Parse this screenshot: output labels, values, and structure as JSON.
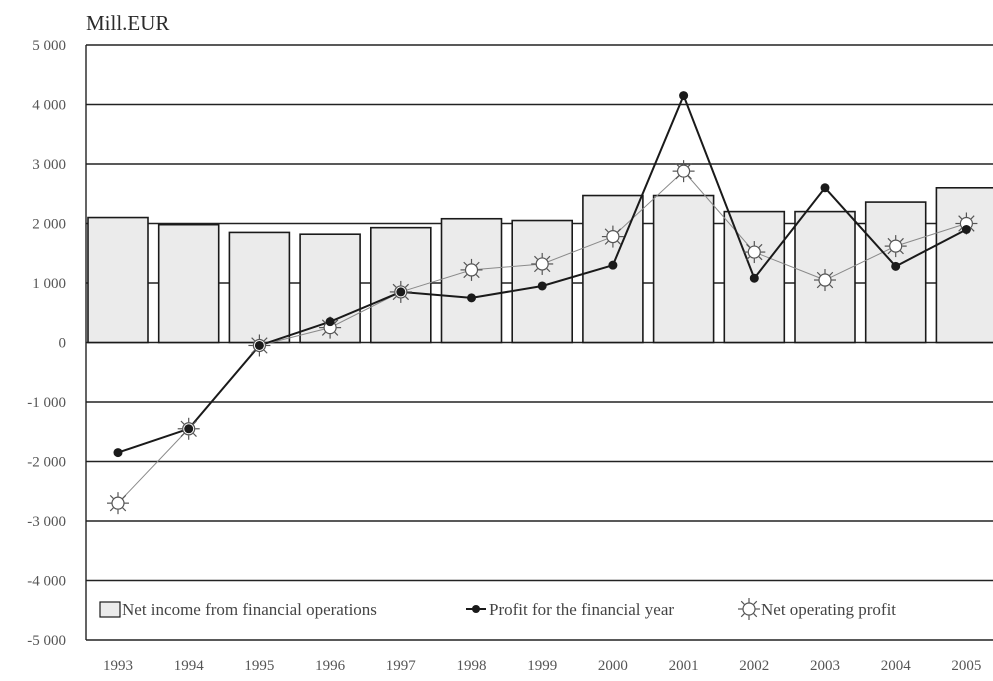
{
  "chart_data": {
    "type": "bar",
    "title": "",
    "ylabel": "Mill.EUR",
    "xlabel": "",
    "ylim": [
      -5000,
      5000
    ],
    "yticks": [
      5000,
      4000,
      3000,
      2000,
      1000,
      0,
      -1000,
      -2000,
      -3000,
      -4000,
      -5000
    ],
    "ytick_labels": [
      "5 000",
      "4 000",
      "3 000",
      "2 000",
      "1 000",
      "0",
      "-1 000",
      "-2 000",
      "-3 000",
      "-4 000",
      "-5 000"
    ],
    "categories": [
      "1993",
      "1994",
      "1995",
      "1996",
      "1997",
      "1998",
      "1999",
      "2000",
      "2001",
      "2002",
      "2003",
      "2004",
      "2005"
    ],
    "grid": true,
    "legend_position": "bottom",
    "series": [
      {
        "name": "Net income from financial operations",
        "kind": "bar",
        "values": [
          2100,
          1980,
          1850,
          1820,
          1930,
          2080,
          2050,
          2470,
          2470,
          2200,
          2200,
          2360,
          2600
        ]
      },
      {
        "name": "Profit for the financial year",
        "kind": "line",
        "marker": "dot",
        "values": [
          -1850,
          -1450,
          -50,
          350,
          850,
          750,
          950,
          1300,
          4150,
          1080,
          2600,
          1280,
          1900
        ]
      },
      {
        "name": "Net operating profit",
        "kind": "line",
        "marker": "sun",
        "values": [
          -2700,
          -1450,
          -50,
          250,
          850,
          1220,
          1320,
          1780,
          2880,
          1520,
          1050,
          1620,
          2000
        ]
      }
    ],
    "colors": {
      "bar_fill": "#ebebeb",
      "bar_stroke": "#1a1a1a",
      "profit_line": "#1a1a1a",
      "operating_line": "#8a8a8a",
      "grid": "#222222"
    }
  }
}
